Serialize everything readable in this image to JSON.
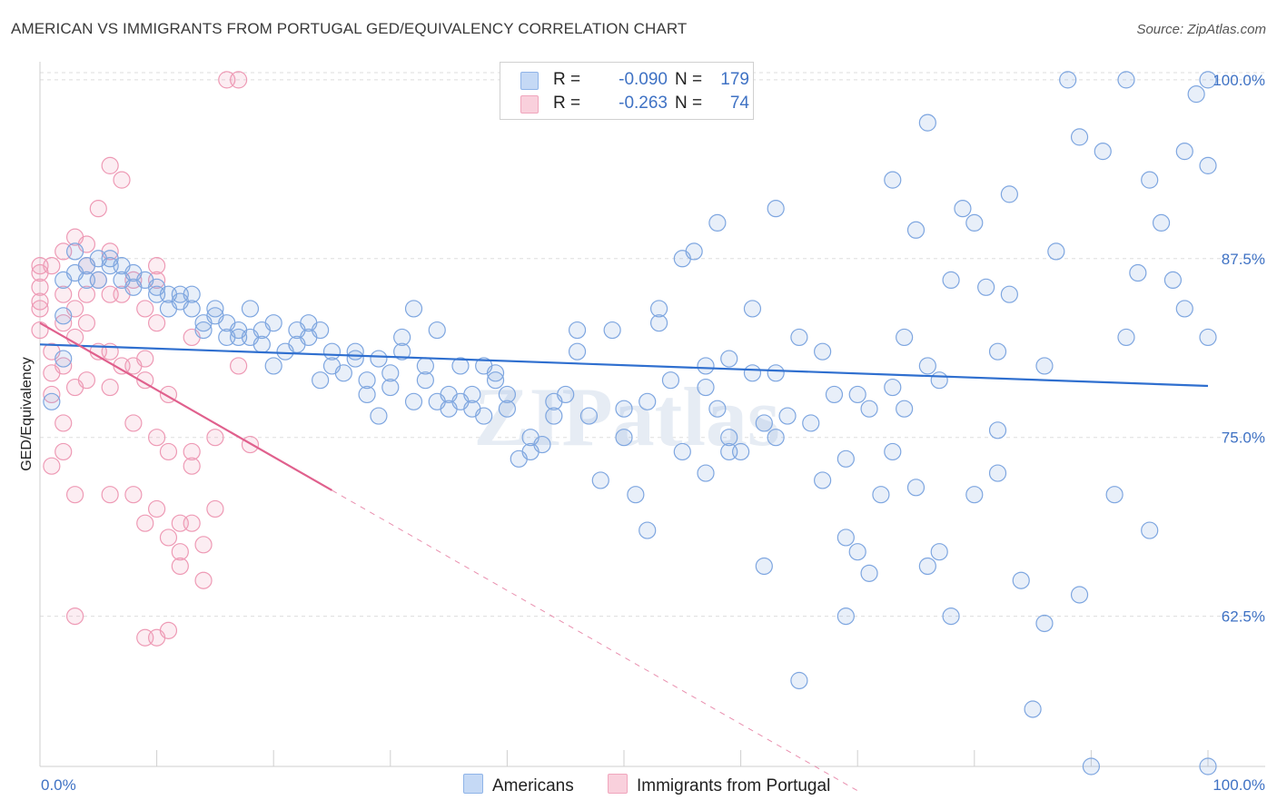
{
  "title": "AMERICAN VS IMMIGRANTS FROM PORTUGAL GED/EQUIVALENCY CORRELATION CHART",
  "source": "Source: ZipAtlas.com",
  "watermark": "ZIPatlas",
  "legend": {
    "r_label": "R =",
    "n_label": "N =",
    "rows": [
      {
        "name": "Americans",
        "r": "-0.090",
        "n": "179",
        "color": "#8fb4e8",
        "fill": "#c5d9f5"
      },
      {
        "name": "Immigrants from Portugal",
        "r": "-0.263",
        "n": "74",
        "color": "#f0a6bd",
        "fill": "#f9d0dc"
      }
    ]
  },
  "bottom_legend": [
    "Americans",
    "Immigrants from Portugal"
  ],
  "colors": {
    "blue_point": "#7ea6e0",
    "blue_fill": "rgba(126,166,224,0.18)",
    "blue_line": "#2f6fcf",
    "pink_point": "#ee9ab5",
    "pink_fill": "rgba(238,154,181,0.18)",
    "pink_line": "#e0608d",
    "grid": "#dddddd",
    "tick_text": "#3f72c4"
  },
  "chart_data": {
    "type": "scatter",
    "title": "AMERICAN VS IMMIGRANTS FROM PORTUGAL GED/EQUIVALENCY CORRELATION CHART",
    "xlabel": "",
    "ylabel": "GED/Equivalency",
    "xlim": [
      0,
      100
    ],
    "ylim": [
      52,
      100.5
    ],
    "x_tick_labels": [
      "0.0%",
      "100.0%"
    ],
    "y_ticks": [
      62.5,
      75.0,
      87.5,
      100.0
    ],
    "y_tick_labels": [
      "62.5%",
      "75.0%",
      "87.5%",
      "100.0%"
    ],
    "series": [
      {
        "name": "Americans",
        "r": -0.09,
        "n": 179,
        "trend": {
          "x": [
            0,
            100
          ],
          "y": [
            81.5,
            78.6
          ]
        },
        "points": [
          [
            1,
            77.5
          ],
          [
            2,
            80.5
          ],
          [
            2,
            83.5
          ],
          [
            2,
            86
          ],
          [
            3,
            86.5
          ],
          [
            3,
            88
          ],
          [
            4,
            86
          ],
          [
            4,
            87
          ],
          [
            5,
            86
          ],
          [
            5,
            87.5
          ],
          [
            6,
            87
          ],
          [
            6,
            87.5
          ],
          [
            7,
            87
          ],
          [
            7,
            86
          ],
          [
            8,
            85.5
          ],
          [
            8,
            86.5
          ],
          [
            9,
            86
          ],
          [
            10,
            85
          ],
          [
            10,
            85.5
          ],
          [
            11,
            85
          ],
          [
            11,
            84
          ],
          [
            12,
            84.5
          ],
          [
            12,
            85
          ],
          [
            13,
            84
          ],
          [
            13,
            85
          ],
          [
            14,
            83
          ],
          [
            14,
            82.5
          ],
          [
            15,
            84
          ],
          [
            15,
            83.5
          ],
          [
            16,
            82
          ],
          [
            16,
            83
          ],
          [
            17,
            82
          ],
          [
            17,
            82.5
          ],
          [
            18,
            82
          ],
          [
            18,
            84
          ],
          [
            19,
            82.5
          ],
          [
            19,
            81.5
          ],
          [
            20,
            83
          ],
          [
            20,
            80
          ],
          [
            21,
            81
          ],
          [
            22,
            82.5
          ],
          [
            22,
            81.5
          ],
          [
            23,
            83
          ],
          [
            23,
            82
          ],
          [
            24,
            82.5
          ],
          [
            24,
            79
          ],
          [
            25,
            81
          ],
          [
            25,
            80
          ],
          [
            26,
            79.5
          ],
          [
            27,
            80.5
          ],
          [
            27,
            81
          ],
          [
            28,
            79
          ],
          [
            28,
            78
          ],
          [
            29,
            80.5
          ],
          [
            29,
            76.5
          ],
          [
            30,
            78.5
          ],
          [
            30,
            79.5
          ],
          [
            31,
            81
          ],
          [
            31,
            82
          ],
          [
            32,
            77.5
          ],
          [
            32,
            84
          ],
          [
            33,
            79
          ],
          [
            33,
            80
          ],
          [
            34,
            77.5
          ],
          [
            34,
            82.5
          ],
          [
            35,
            77
          ],
          [
            35,
            78
          ],
          [
            36,
            80
          ],
          [
            36,
            77.5
          ],
          [
            37,
            77
          ],
          [
            37,
            78
          ],
          [
            38,
            76.5
          ],
          [
            38,
            80
          ],
          [
            39,
            79
          ],
          [
            39,
            79.5
          ],
          [
            40,
            78
          ],
          [
            40,
            77
          ],
          [
            41,
            73.5
          ],
          [
            42,
            75
          ],
          [
            42,
            74
          ],
          [
            43,
            74.5
          ],
          [
            44,
            77.5
          ],
          [
            44,
            76.5
          ],
          [
            45,
            78
          ],
          [
            46,
            82.5
          ],
          [
            46,
            81
          ],
          [
            47,
            76.5
          ],
          [
            48,
            72
          ],
          [
            49,
            82.5
          ],
          [
            50,
            77
          ],
          [
            50,
            75
          ],
          [
            51,
            71
          ],
          [
            52,
            77.5
          ],
          [
            52,
            68.5
          ],
          [
            53,
            84
          ],
          [
            53,
            83
          ],
          [
            54,
            79
          ],
          [
            55,
            74
          ],
          [
            55,
            87.5
          ],
          [
            56,
            88
          ],
          [
            57,
            80
          ],
          [
            57,
            72.5
          ],
          [
            57,
            78.5
          ],
          [
            58,
            77
          ],
          [
            58,
            90
          ],
          [
            59,
            80.5
          ],
          [
            59,
            75
          ],
          [
            59,
            74
          ],
          [
            60,
            74
          ],
          [
            61,
            84
          ],
          [
            61,
            79.5
          ],
          [
            62,
            66
          ],
          [
            62,
            76
          ],
          [
            63,
            75
          ],
          [
            63,
            91
          ],
          [
            63,
            79.5
          ],
          [
            64,
            76.5
          ],
          [
            65,
            58
          ],
          [
            65,
            82
          ],
          [
            66,
            76
          ],
          [
            67,
            72
          ],
          [
            67,
            81
          ],
          [
            68,
            78
          ],
          [
            69,
            62.5
          ],
          [
            69,
            68
          ],
          [
            69,
            73.5
          ],
          [
            70,
            67
          ],
          [
            70,
            78
          ],
          [
            71,
            65.5
          ],
          [
            71,
            77
          ],
          [
            72,
            71
          ],
          [
            73,
            78.5
          ],
          [
            73,
            93
          ],
          [
            73,
            74
          ],
          [
            74,
            82
          ],
          [
            74,
            77
          ],
          [
            75,
            89.5
          ],
          [
            75,
            71.5
          ],
          [
            76,
            97
          ],
          [
            76,
            66
          ],
          [
            76,
            80
          ],
          [
            77,
            79
          ],
          [
            77,
            67
          ],
          [
            78,
            86
          ],
          [
            78,
            62.5
          ],
          [
            79,
            91
          ],
          [
            80,
            71
          ],
          [
            80,
            90
          ],
          [
            81,
            85.5
          ],
          [
            82,
            81
          ],
          [
            82,
            72.5
          ],
          [
            82,
            75.5
          ],
          [
            83,
            85
          ],
          [
            83,
            92
          ],
          [
            84,
            65
          ],
          [
            85,
            56
          ],
          [
            86,
            62
          ],
          [
            86,
            80
          ],
          [
            87,
            88
          ],
          [
            88,
            100
          ],
          [
            89,
            64
          ],
          [
            89,
            96
          ],
          [
            90,
            52
          ],
          [
            91,
            95
          ],
          [
            92,
            71
          ],
          [
            93,
            82
          ],
          [
            93,
            100
          ],
          [
            94,
            86.5
          ],
          [
            95,
            93
          ],
          [
            95,
            68.5
          ],
          [
            96,
            90
          ],
          [
            97,
            86
          ],
          [
            98,
            84
          ],
          [
            98,
            95
          ],
          [
            99,
            99
          ],
          [
            100,
            100
          ],
          [
            100,
            94
          ],
          [
            100,
            82
          ],
          [
            100,
            52
          ]
        ]
      },
      {
        "name": "Immigrants from Portugal",
        "r": -0.263,
        "n": 74,
        "trend": {
          "x": [
            0,
            25
          ],
          "y": [
            83.0,
            71.3
          ]
        },
        "trend_dashed": {
          "x": [
            25,
            70
          ],
          "y": [
            71.3,
            50.3
          ]
        },
        "points": [
          [
            0,
            87
          ],
          [
            0,
            86.5
          ],
          [
            0,
            85.5
          ],
          [
            0,
            84.5
          ],
          [
            0,
            84
          ],
          [
            0,
            82.5
          ],
          [
            1,
            81
          ],
          [
            1,
            79.5
          ],
          [
            1,
            78
          ],
          [
            1,
            73
          ],
          [
            1,
            87
          ],
          [
            2,
            88
          ],
          [
            2,
            85
          ],
          [
            2,
            83
          ],
          [
            2,
            80
          ],
          [
            2,
            76
          ],
          [
            2,
            74
          ],
          [
            3,
            89
          ],
          [
            3,
            84
          ],
          [
            3,
            82
          ],
          [
            3,
            78.5
          ],
          [
            3,
            71
          ],
          [
            3,
            62.5
          ],
          [
            4,
            88.5
          ],
          [
            4,
            87
          ],
          [
            4,
            85
          ],
          [
            4,
            83
          ],
          [
            4,
            79
          ],
          [
            5,
            91
          ],
          [
            5,
            86
          ],
          [
            5,
            81
          ],
          [
            6,
            94
          ],
          [
            6,
            88
          ],
          [
            6,
            85
          ],
          [
            6,
            81
          ],
          [
            6,
            78.5
          ],
          [
            6,
            71
          ],
          [
            7,
            93
          ],
          [
            7,
            85
          ],
          [
            7,
            80
          ],
          [
            8,
            86
          ],
          [
            8,
            80
          ],
          [
            8,
            76
          ],
          [
            8,
            71
          ],
          [
            9,
            84
          ],
          [
            9,
            80.5
          ],
          [
            9,
            79
          ],
          [
            9,
            69
          ],
          [
            9,
            61
          ],
          [
            10,
            87
          ],
          [
            10,
            86
          ],
          [
            10,
            83
          ],
          [
            10,
            75
          ],
          [
            10,
            70
          ],
          [
            10,
            61
          ],
          [
            11,
            78
          ],
          [
            11,
            74
          ],
          [
            11,
            68
          ],
          [
            11,
            61.5
          ],
          [
            12,
            69
          ],
          [
            12,
            67
          ],
          [
            12,
            66
          ],
          [
            13,
            82
          ],
          [
            13,
            74
          ],
          [
            13,
            73
          ],
          [
            13,
            69
          ],
          [
            14,
            67.5
          ],
          [
            14,
            65
          ],
          [
            15,
            75
          ],
          [
            15,
            70
          ],
          [
            16,
            100
          ],
          [
            17,
            100
          ],
          [
            17,
            80
          ],
          [
            18,
            74.5
          ]
        ]
      }
    ]
  }
}
